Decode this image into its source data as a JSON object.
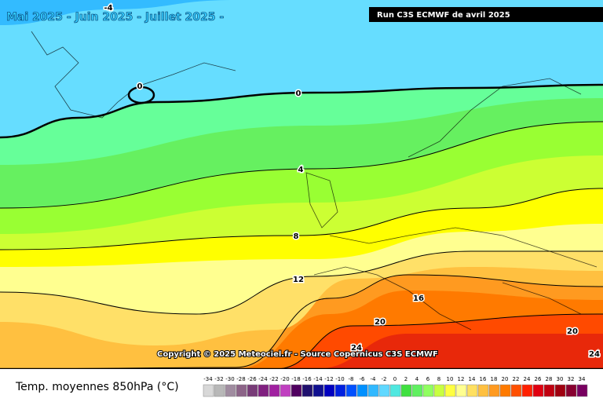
{
  "header": {
    "title": "Mai 2025 - Juin 2025 - Juillet 2025 -",
    "run": "Run C3S ECMWF de avril 2025"
  },
  "map": {
    "contour_labels": [
      -4,
      0,
      0,
      4,
      8,
      12,
      16,
      20,
      24,
      20,
      24
    ],
    "copyright": "Copyright © 2025 Meteociel.fr - Source Copernicus C3S ECMWF"
  },
  "legend": {
    "title": "Temp. moyennes 850hPa (°C)",
    "ticks": [
      -34,
      -32,
      -30,
      -28,
      -26,
      -24,
      -22,
      -20,
      -18,
      -16,
      -14,
      -12,
      -10,
      -8,
      -6,
      -4,
      -2,
      0,
      2,
      4,
      6,
      8,
      10,
      12,
      14,
      16,
      18,
      20,
      22,
      24,
      26,
      28,
      30,
      32,
      34
    ],
    "colors": [
      "#d8d8d8",
      "#b8b8b8",
      "#a08ca0",
      "#8c6488",
      "#783c78",
      "#802080",
      "#a020a0",
      "#c040c0",
      "#500060",
      "#20106e",
      "#101090",
      "#0000c0",
      "#0020e0",
      "#0050ff",
      "#0090ff",
      "#30b8ff",
      "#60d8ff",
      "#50e8e0",
      "#40e040",
      "#60f060",
      "#90ff60",
      "#c8ff40",
      "#ffff40",
      "#ffff90",
      "#ffe060",
      "#ffc040",
      "#ff9a20",
      "#ff7a00",
      "#ff5000",
      "#ff2000",
      "#e00010",
      "#c00010",
      "#a00010",
      "#880030",
      "#780060"
    ]
  }
}
